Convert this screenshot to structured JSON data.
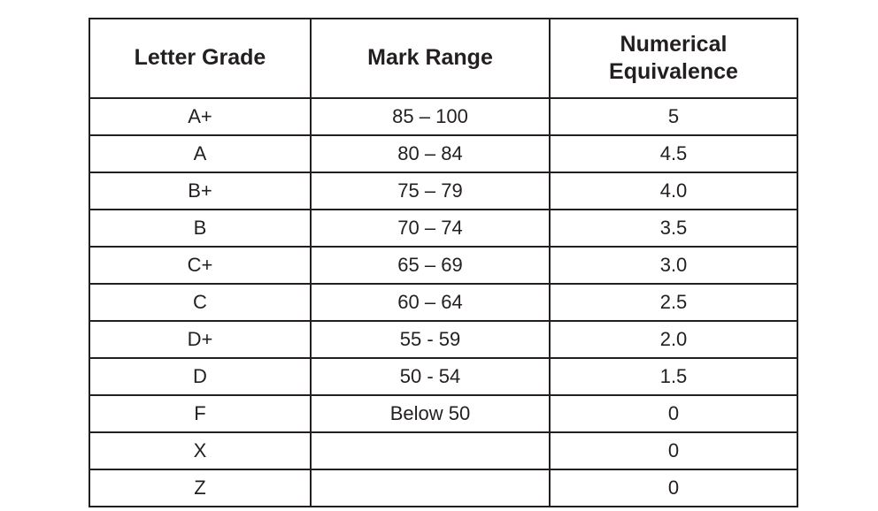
{
  "table": {
    "columns": [
      {
        "label": "Letter Grade"
      },
      {
        "label": "Mark Range"
      },
      {
        "label": "Numerical Equivalence"
      }
    ],
    "rows": [
      {
        "letter": "A+",
        "range": "85 – 100",
        "numeric": "5"
      },
      {
        "letter": "A",
        "range": "80 – 84",
        "numeric": "4.5"
      },
      {
        "letter": "B+",
        "range": "75 – 79",
        "numeric": "4.0"
      },
      {
        "letter": "B",
        "range": "70 – 74",
        "numeric": "3.5"
      },
      {
        "letter": "C+",
        "range": "65 – 69",
        "numeric": "3.0"
      },
      {
        "letter": "C",
        "range": "60 – 64",
        "numeric": "2.5"
      },
      {
        "letter": "D+",
        "range": "55 - 59",
        "numeric": "2.0"
      },
      {
        "letter": "D",
        "range": "50 - 54",
        "numeric": "1.5"
      },
      {
        "letter": "F",
        "range": "Below 50",
        "numeric": "0"
      },
      {
        "letter": "X",
        "range": "",
        "numeric": "0"
      },
      {
        "letter": "Z",
        "range": "",
        "numeric": "0"
      }
    ]
  },
  "style": {
    "border_color": "#231f20",
    "text_color": "#231f20",
    "background_color": "#ffffff",
    "header_font_size_pt": 19,
    "body_font_size_pt": 16,
    "header_font_weight": 700,
    "body_font_weight": 400
  }
}
